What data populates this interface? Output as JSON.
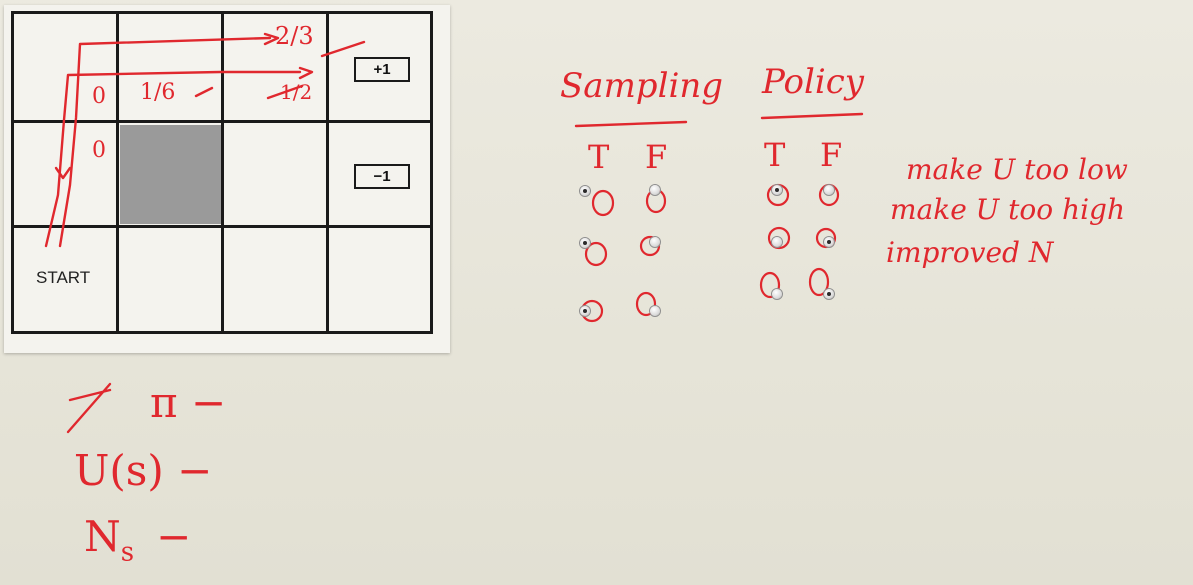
{
  "grid": {
    "start_label": "START",
    "plus_reward": "+1",
    "minus_reward": "−1",
    "cell_values": {
      "row1_col1": "0",
      "row1_col2": "1/6",
      "row1_col3": "1/2",
      "row1_top": "2/3",
      "row2_col1": "0"
    }
  },
  "whiteboard": {
    "sampling_header": "Sampling",
    "policy_header": "Policy",
    "true_label": "T",
    "false_label": "F",
    "statements": [
      "make U too low",
      "make U too high",
      "improved N"
    ],
    "notes": {
      "pi_label": "π −",
      "utility_label": "U(s) −",
      "ns_label": "N",
      "ns_sub": "s",
      "ns_dash": "−"
    }
  },
  "quiz": {
    "sampling": [
      {
        "selected": "T"
      },
      {
        "selected": "T"
      },
      {
        "selected": "T"
      }
    ],
    "policy": [
      {
        "selected": "T"
      },
      {
        "selected": "F"
      },
      {
        "selected": "F"
      }
    ]
  },
  "colors": {
    "ink": "#e0282e",
    "board": "#e9e7dc",
    "wall": "#9a9a9a"
  }
}
